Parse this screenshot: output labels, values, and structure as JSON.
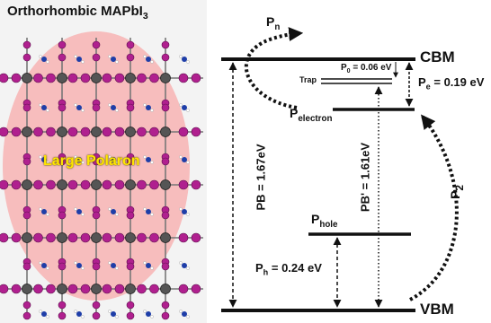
{
  "lattice": {
    "title": "Orthorhombic MAPbI",
    "title_sub": "3",
    "polaron_label": "Large Polaron"
  },
  "diagram": {
    "cbm": "CBM",
    "vbm": "VBM",
    "pn_main": "P",
    "pn_sub": "n",
    "p2_main": "P",
    "p2_sub": "2",
    "trap": "Trap",
    "p0_main": "P",
    "p0_sub": "0",
    "p0_value": " = 0.06 eV",
    "pe_main": "P",
    "pe_sub": "e",
    "pe_value": "= 0.19 eV",
    "pelectron_main": "P",
    "pelectron_sub": "electron",
    "phole_main": "P",
    "phole_sub": "hole",
    "ph_main": "P",
    "ph_sub": "h",
    "ph_value": "= 0.24 eV",
    "pb": "PB = 1.67eV",
    "pb_prime": "PB' = 1.61eV"
  },
  "colors": {
    "polaron_fill": "#f7b3b3",
    "iodine": "#b0208f",
    "lead": "#555555",
    "nitrogen": "#1e3ea8",
    "label_yellow": "#ffe600"
  }
}
